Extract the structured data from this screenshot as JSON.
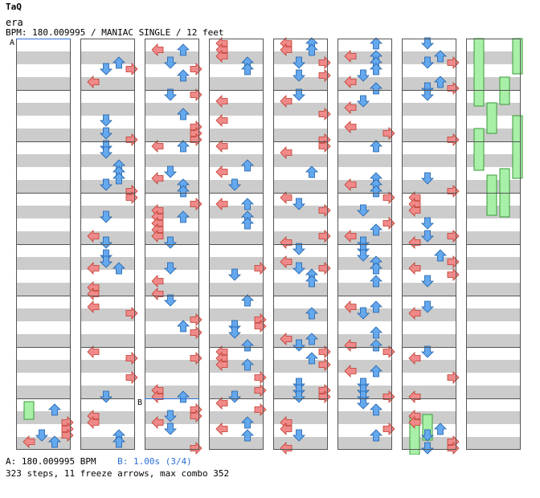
{
  "header": {
    "artist": "TaQ",
    "title": "era",
    "meta": "BPM: 180.009995 / MANIAC SINGLE / 12 feet"
  },
  "markers": {
    "a": "A",
    "b": "B"
  },
  "footer": {
    "bpm_prefix": "A: 180.009995 BPM",
    "stop_info": "B: 1.00s (3/4)",
    "stats": "323 steps, 11 freeze arrows, max combo 352"
  },
  "colors": {
    "left_right": "#f08a8a",
    "up_down": "#64a8ee",
    "freeze": "#a8f0a8",
    "stripe": "#cccccc"
  },
  "chart_data": {
    "type": "step-chart",
    "columns": 8,
    "measures_per_column": 8,
    "lanes": [
      "left",
      "down",
      "up",
      "right"
    ]
  }
}
